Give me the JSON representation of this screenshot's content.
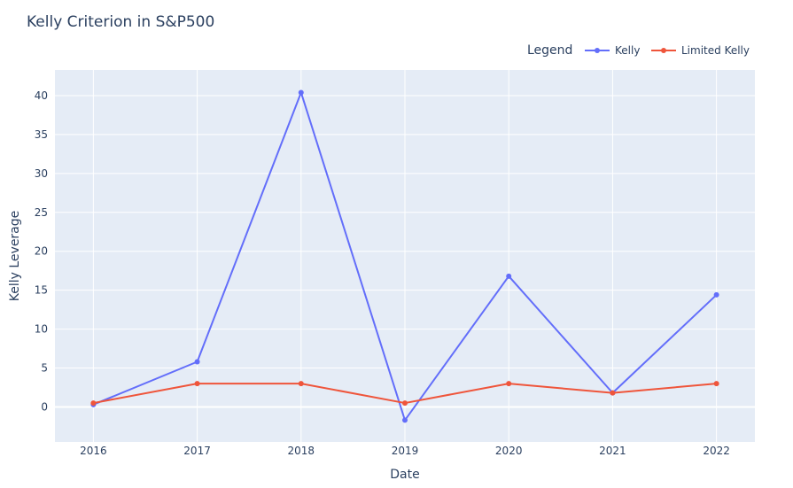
{
  "chart_data": {
    "type": "line",
    "title": "Kelly Criterion in S&P500",
    "xlabel": "Date",
    "ylabel": "Kelly Leverage",
    "categories": [
      "2016",
      "2017",
      "2018",
      "2019",
      "2020",
      "2021",
      "2022"
    ],
    "x": [
      2016,
      2017,
      2018,
      2019,
      2020,
      2021,
      2022
    ],
    "xlim": [
      2015.63,
      2022.37
    ],
    "ylim": [
      -4.5,
      43.3
    ],
    "yticks": [
      0,
      5,
      10,
      15,
      20,
      25,
      30,
      35,
      40
    ],
    "yticklabels": [
      "0",
      "5",
      "10",
      "15",
      "20",
      "25",
      "30",
      "35",
      "40"
    ],
    "legend": {
      "title": "Legend",
      "placement": "top-right",
      "orientation": "horizontal"
    },
    "grid": true,
    "series": [
      {
        "name": "Kelly",
        "color": "#636efa",
        "values": [
          0.3,
          5.8,
          40.4,
          -1.7,
          16.8,
          1.8,
          14.4
        ]
      },
      {
        "name": "Limited Kelly",
        "color": "#ef553b",
        "values": [
          0.5,
          3.0,
          3.0,
          0.5,
          3.0,
          1.8,
          3.0
        ]
      }
    ],
    "colors": {
      "plot_background": "#e5ecf6",
      "grid": "#ffffff",
      "text": "#2a3f5f"
    }
  }
}
